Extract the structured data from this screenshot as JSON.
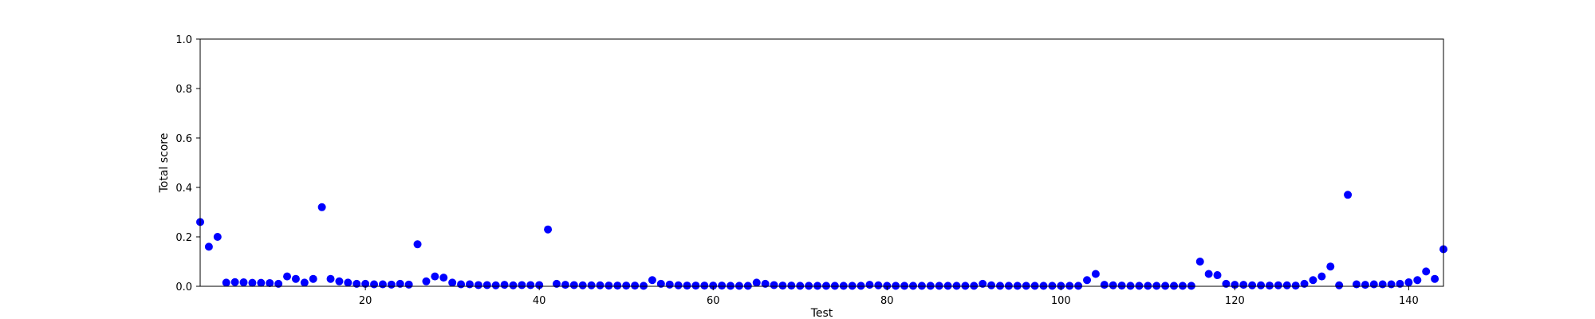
{
  "chart_data": {
    "type": "scatter",
    "xlabel": "Test",
    "ylabel": "Total score",
    "xlim": [
      1,
      144
    ],
    "ylim": [
      0,
      1.0
    ],
    "xticks": [
      20,
      40,
      60,
      80,
      100,
      120,
      140
    ],
    "yticks": [
      0.0,
      0.2,
      0.4,
      0.6,
      0.8,
      1.0
    ],
    "ytick_labels": [
      "0.0",
      "0.2",
      "0.4",
      "0.6",
      "0.8",
      "1.0"
    ],
    "xtick_labels": [
      "20",
      "40",
      "60",
      "80",
      "100",
      "120",
      "140"
    ],
    "grid": false,
    "marker_color": "#0000ff",
    "x": [
      1,
      2,
      3,
      4,
      5,
      6,
      7,
      8,
      9,
      10,
      11,
      12,
      13,
      14,
      15,
      16,
      17,
      18,
      19,
      20,
      21,
      22,
      23,
      24,
      25,
      26,
      27,
      28,
      29,
      30,
      31,
      32,
      33,
      34,
      35,
      36,
      37,
      38,
      39,
      40,
      41,
      42,
      43,
      44,
      45,
      46,
      47,
      48,
      49,
      50,
      51,
      52,
      53,
      54,
      55,
      56,
      57,
      58,
      59,
      60,
      61,
      62,
      63,
      64,
      65,
      66,
      67,
      68,
      69,
      70,
      71,
      72,
      73,
      74,
      75,
      76,
      77,
      78,
      79,
      80,
      81,
      82,
      83,
      84,
      85,
      86,
      87,
      88,
      89,
      90,
      91,
      92,
      93,
      94,
      95,
      96,
      97,
      98,
      99,
      100,
      101,
      102,
      103,
      104,
      105,
      106,
      107,
      108,
      109,
      110,
      111,
      112,
      113,
      114,
      115,
      116,
      117,
      118,
      119,
      120,
      121,
      122,
      123,
      124,
      125,
      126,
      127,
      128,
      129,
      130,
      131,
      132,
      133,
      134,
      135,
      136,
      137,
      138,
      139,
      140,
      141,
      142,
      143,
      144
    ],
    "y": [
      0.26,
      0.16,
      0.2,
      0.015,
      0.017,
      0.016,
      0.014,
      0.014,
      0.013,
      0.01,
      0.04,
      0.03,
      0.015,
      0.03,
      0.32,
      0.03,
      0.02,
      0.015,
      0.01,
      0.01,
      0.008,
      0.008,
      0.007,
      0.01,
      0.007,
      0.17,
      0.02,
      0.04,
      0.035,
      0.015,
      0.008,
      0.008,
      0.005,
      0.005,
      0.004,
      0.006,
      0.004,
      0.005,
      0.005,
      0.005,
      0.23,
      0.01,
      0.006,
      0.005,
      0.004,
      0.004,
      0.004,
      0.003,
      0.003,
      0.003,
      0.003,
      0.002,
      0.025,
      0.01,
      0.007,
      0.004,
      0.003,
      0.003,
      0.003,
      0.003,
      0.003,
      0.002,
      0.002,
      0.002,
      0.015,
      0.01,
      0.005,
      0.003,
      0.003,
      0.002,
      0.002,
      0.002,
      0.002,
      0.002,
      0.002,
      0.002,
      0.002,
      0.006,
      0.004,
      0.002,
      0.002,
      0.002,
      0.002,
      0.002,
      0.002,
      0.002,
      0.002,
      0.002,
      0.002,
      0.002,
      0.01,
      0.004,
      0.002,
      0.002,
      0.002,
      0.002,
      0.002,
      0.002,
      0.002,
      0.002,
      0.002,
      0.002,
      0.025,
      0.05,
      0.006,
      0.004,
      0.003,
      0.002,
      0.002,
      0.002,
      0.002,
      0.002,
      0.002,
      0.002,
      0.002,
      0.1,
      0.05,
      0.045,
      0.01,
      0.006,
      0.006,
      0.004,
      0.004,
      0.003,
      0.004,
      0.004,
      0.003,
      0.01,
      0.025,
      0.04,
      0.08,
      0.004,
      0.37,
      0.008,
      0.006,
      0.008,
      0.008,
      0.008,
      0.01,
      0.016,
      0.025,
      0.06,
      0.03,
      0.15
    ]
  }
}
